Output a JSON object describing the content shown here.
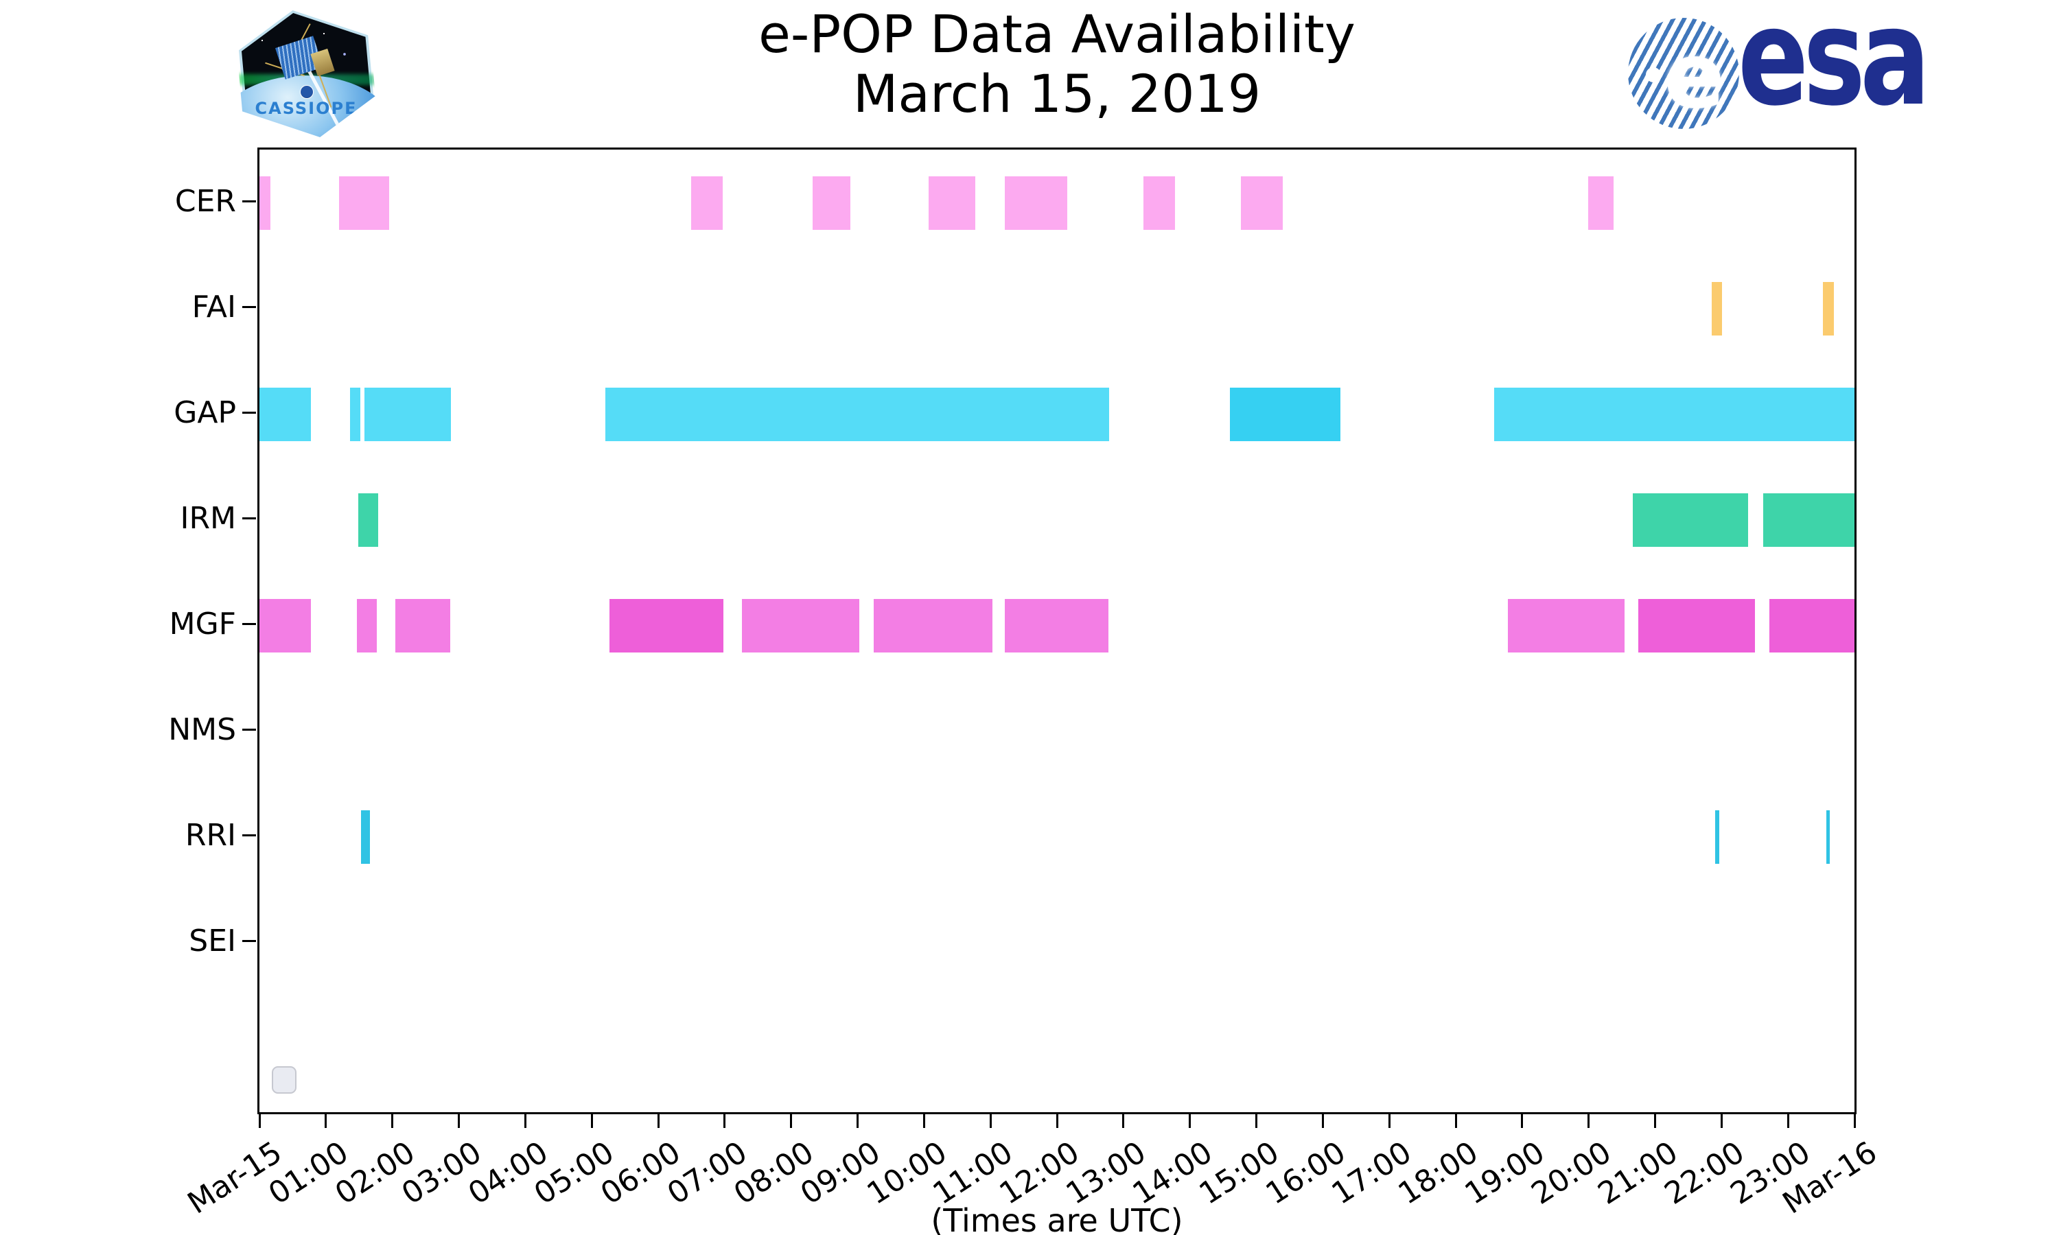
{
  "header": {
    "title": "e-POP Data Availability",
    "subtitle": "March 15, 2019",
    "esa_wordmark": "esa",
    "esa_globe_letter": "e",
    "cassiope_patch_text": "CASSIOPE"
  },
  "chart_data": {
    "type": "bar",
    "subtype": "horizontal-interval-availability-timeline",
    "title": "e-POP Data Availability",
    "subtitle": "March 15, 2019",
    "xlabel": "(Times are UTC)",
    "grid": false,
    "legend_position": "none",
    "x_axis": {
      "units": "hours UTC of 2019-03-15",
      "min_hours": 0,
      "max_hours": 24,
      "tick_interval_hours": 1,
      "tick_labels": [
        "Mar-15",
        "01:00",
        "02:00",
        "03:00",
        "04:00",
        "05:00",
        "06:00",
        "07:00",
        "08:00",
        "09:00",
        "10:00",
        "11:00",
        "12:00",
        "13:00",
        "14:00",
        "15:00",
        "16:00",
        "17:00",
        "18:00",
        "19:00",
        "20:00",
        "21:00",
        "22:00",
        "23:00",
        "Mar-16"
      ]
    },
    "rows": [
      {
        "label": "CER",
        "color": "#fcaaf0",
        "intervals": [
          {
            "start": 0.0,
            "end": 0.17
          },
          {
            "start": 1.2,
            "end": 1.95
          },
          {
            "start": 6.5,
            "end": 6.97
          },
          {
            "start": 8.32,
            "end": 8.89
          },
          {
            "start": 10.07,
            "end": 10.77
          },
          {
            "start": 11.22,
            "end": 12.15
          },
          {
            "start": 13.3,
            "end": 13.78
          },
          {
            "start": 14.77,
            "end": 15.4
          },
          {
            "start": 19.99,
            "end": 20.38
          }
        ]
      },
      {
        "label": "FAI",
        "color": "#fbcb6e",
        "intervals": [
          {
            "start": 21.85,
            "end": 22.01
          },
          {
            "start": 23.52,
            "end": 23.69
          }
        ]
      },
      {
        "label": "GAP",
        "color": "#55dcf7",
        "intervals": [
          {
            "start": 0.0,
            "end": 0.77
          },
          {
            "start": 1.36,
            "end": 1.52
          },
          {
            "start": 1.58,
            "end": 2.88
          },
          {
            "start": 5.2,
            "end": 12.78
          },
          {
            "start": 14.6,
            "end": 16.27,
            "color": "#36d0f2"
          },
          {
            "start": 18.58,
            "end": 24.0
          }
        ]
      },
      {
        "label": "IRM",
        "color": "#3ed4a9",
        "intervals": [
          {
            "start": 1.49,
            "end": 1.79
          },
          {
            "start": 20.66,
            "end": 22.4
          },
          {
            "start": 22.63,
            "end": 24.0
          }
        ]
      },
      {
        "label": "MGF",
        "color": "#f37ee4",
        "intervals": [
          {
            "start": 0.0,
            "end": 0.77
          },
          {
            "start": 1.47,
            "end": 1.77
          },
          {
            "start": 2.04,
            "end": 2.87
          },
          {
            "start": 5.27,
            "end": 6.98,
            "color": "#ee5fd9"
          },
          {
            "start": 7.26,
            "end": 9.03
          },
          {
            "start": 9.24,
            "end": 11.03
          },
          {
            "start": 11.21,
            "end": 12.77
          },
          {
            "start": 18.79,
            "end": 20.54
          },
          {
            "start": 20.75,
            "end": 22.5,
            "color": "#ee5fd9"
          },
          {
            "start": 22.72,
            "end": 24.0,
            "color": "#ee5fd9"
          }
        ]
      },
      {
        "label": "NMS",
        "color": "#cccccc",
        "intervals": []
      },
      {
        "label": "RRI",
        "color": "#30c3e4",
        "intervals": [
          {
            "start": 1.53,
            "end": 1.66
          },
          {
            "start": 21.9,
            "end": 21.97
          },
          {
            "start": 23.58,
            "end": 23.63
          }
        ]
      },
      {
        "label": "SEI",
        "color": "#cccccc",
        "intervals": []
      }
    ]
  },
  "misc": {
    "empty_legend_box": ""
  }
}
